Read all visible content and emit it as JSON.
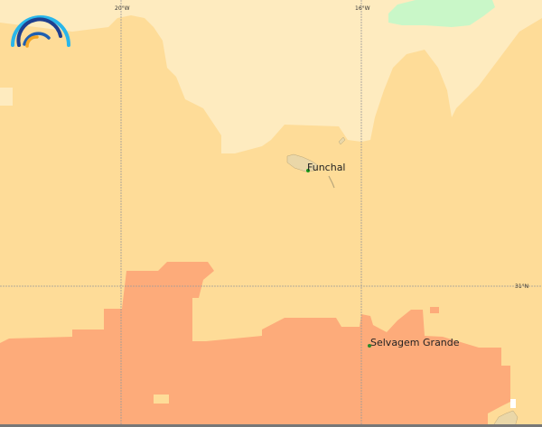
{
  "colors": {
    "light": "#feebbf",
    "mid": "#fedc98",
    "orange": "#fdab7a",
    "green": "#c9f7c8",
    "land": "#ead7a8",
    "city": "#1a9a1a"
  },
  "logo": "weather-rainbow-logo",
  "gridlines": {
    "lon": [
      "20°W",
      "16°W"
    ],
    "lat": [
      "31°N"
    ]
  },
  "places": [
    {
      "name": "Funchal"
    },
    {
      "name": "Selvagem Grande"
    }
  ]
}
